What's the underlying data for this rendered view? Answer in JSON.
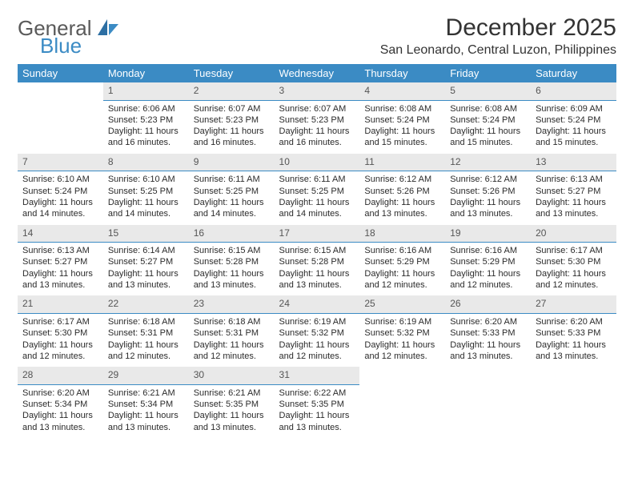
{
  "logo": {
    "top": "General",
    "bottom": "Blue"
  },
  "title": "December 2025",
  "location": "San Leonardo, Central Luzon, Philippines",
  "colors": {
    "header_bg": "#3b8bc4",
    "header_text": "#ffffff",
    "daynum_bg": "#e9e9e9",
    "daynum_border": "#3b8bc4",
    "body_text": "#2b2b2b",
    "title_text": "#333333",
    "logo_gray": "#5a5a5a",
    "logo_blue": "#3b8bc4",
    "page_bg": "#ffffff"
  },
  "day_headers": [
    "Sunday",
    "Monday",
    "Tuesday",
    "Wednesday",
    "Thursday",
    "Friday",
    "Saturday"
  ],
  "weeks": [
    [
      null,
      {
        "n": "1",
        "sr": "6:06 AM",
        "ss": "5:23 PM",
        "dl": "11 hours and 16 minutes."
      },
      {
        "n": "2",
        "sr": "6:07 AM",
        "ss": "5:23 PM",
        "dl": "11 hours and 16 minutes."
      },
      {
        "n": "3",
        "sr": "6:07 AM",
        "ss": "5:23 PM",
        "dl": "11 hours and 16 minutes."
      },
      {
        "n": "4",
        "sr": "6:08 AM",
        "ss": "5:24 PM",
        "dl": "11 hours and 15 minutes."
      },
      {
        "n": "5",
        "sr": "6:08 AM",
        "ss": "5:24 PM",
        "dl": "11 hours and 15 minutes."
      },
      {
        "n": "6",
        "sr": "6:09 AM",
        "ss": "5:24 PM",
        "dl": "11 hours and 15 minutes."
      }
    ],
    [
      {
        "n": "7",
        "sr": "6:10 AM",
        "ss": "5:24 PM",
        "dl": "11 hours and 14 minutes."
      },
      {
        "n": "8",
        "sr": "6:10 AM",
        "ss": "5:25 PM",
        "dl": "11 hours and 14 minutes."
      },
      {
        "n": "9",
        "sr": "6:11 AM",
        "ss": "5:25 PM",
        "dl": "11 hours and 14 minutes."
      },
      {
        "n": "10",
        "sr": "6:11 AM",
        "ss": "5:25 PM",
        "dl": "11 hours and 14 minutes."
      },
      {
        "n": "11",
        "sr": "6:12 AM",
        "ss": "5:26 PM",
        "dl": "11 hours and 13 minutes."
      },
      {
        "n": "12",
        "sr": "6:12 AM",
        "ss": "5:26 PM",
        "dl": "11 hours and 13 minutes."
      },
      {
        "n": "13",
        "sr": "6:13 AM",
        "ss": "5:27 PM",
        "dl": "11 hours and 13 minutes."
      }
    ],
    [
      {
        "n": "14",
        "sr": "6:13 AM",
        "ss": "5:27 PM",
        "dl": "11 hours and 13 minutes."
      },
      {
        "n": "15",
        "sr": "6:14 AM",
        "ss": "5:27 PM",
        "dl": "11 hours and 13 minutes."
      },
      {
        "n": "16",
        "sr": "6:15 AM",
        "ss": "5:28 PM",
        "dl": "11 hours and 13 minutes."
      },
      {
        "n": "17",
        "sr": "6:15 AM",
        "ss": "5:28 PM",
        "dl": "11 hours and 13 minutes."
      },
      {
        "n": "18",
        "sr": "6:16 AM",
        "ss": "5:29 PM",
        "dl": "11 hours and 12 minutes."
      },
      {
        "n": "19",
        "sr": "6:16 AM",
        "ss": "5:29 PM",
        "dl": "11 hours and 12 minutes."
      },
      {
        "n": "20",
        "sr": "6:17 AM",
        "ss": "5:30 PM",
        "dl": "11 hours and 12 minutes."
      }
    ],
    [
      {
        "n": "21",
        "sr": "6:17 AM",
        "ss": "5:30 PM",
        "dl": "11 hours and 12 minutes."
      },
      {
        "n": "22",
        "sr": "6:18 AM",
        "ss": "5:31 PM",
        "dl": "11 hours and 12 minutes."
      },
      {
        "n": "23",
        "sr": "6:18 AM",
        "ss": "5:31 PM",
        "dl": "11 hours and 12 minutes."
      },
      {
        "n": "24",
        "sr": "6:19 AM",
        "ss": "5:32 PM",
        "dl": "11 hours and 12 minutes."
      },
      {
        "n": "25",
        "sr": "6:19 AM",
        "ss": "5:32 PM",
        "dl": "11 hours and 12 minutes."
      },
      {
        "n": "26",
        "sr": "6:20 AM",
        "ss": "5:33 PM",
        "dl": "11 hours and 13 minutes."
      },
      {
        "n": "27",
        "sr": "6:20 AM",
        "ss": "5:33 PM",
        "dl": "11 hours and 13 minutes."
      }
    ],
    [
      {
        "n": "28",
        "sr": "6:20 AM",
        "ss": "5:34 PM",
        "dl": "11 hours and 13 minutes."
      },
      {
        "n": "29",
        "sr": "6:21 AM",
        "ss": "5:34 PM",
        "dl": "11 hours and 13 minutes."
      },
      {
        "n": "30",
        "sr": "6:21 AM",
        "ss": "5:35 PM",
        "dl": "11 hours and 13 minutes."
      },
      {
        "n": "31",
        "sr": "6:22 AM",
        "ss": "5:35 PM",
        "dl": "11 hours and 13 minutes."
      },
      null,
      null,
      null
    ]
  ],
  "labels": {
    "sunrise": "Sunrise:",
    "sunset": "Sunset:",
    "daylight": "Daylight:"
  }
}
